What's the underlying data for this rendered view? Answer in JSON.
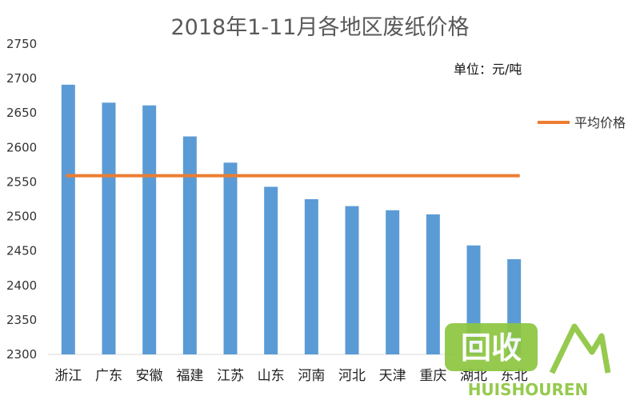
{
  "chart_data": {
    "type": "bar",
    "title": "2018年1-11月各地区废纸价格",
    "unit_label": "单位：元/吨",
    "categories": [
      "浙江",
      "广东",
      "安徽",
      "福建",
      "江苏",
      "山东",
      "河南",
      "河北",
      "天津",
      "重庆",
      "湖北",
      "东北"
    ],
    "series": [
      {
        "type": "bar",
        "values": [
          2691,
          2665,
          2661,
          2616,
          2578,
          2543,
          2525,
          2515,
          2509,
          2503,
          2458,
          2438
        ],
        "color": "#5b9bd5"
      },
      {
        "type": "line",
        "name": "平均价格",
        "values": [
          2559,
          2559,
          2559,
          2559,
          2559,
          2559,
          2559,
          2559,
          2559,
          2559,
          2559,
          2559
        ],
        "color": "#ed7d31"
      }
    ],
    "y_ticks": [
      "2300",
      "2350",
      "2400",
      "2450",
      "2500",
      "2550",
      "2600",
      "2650",
      "2700",
      "2750"
    ],
    "ylim": [
      2300,
      2750
    ],
    "grid": false,
    "legend_position": "right"
  },
  "watermark": {
    "logo_text": "回收",
    "site_text": "HUISHOUREN",
    "color": "#8dc63f"
  }
}
